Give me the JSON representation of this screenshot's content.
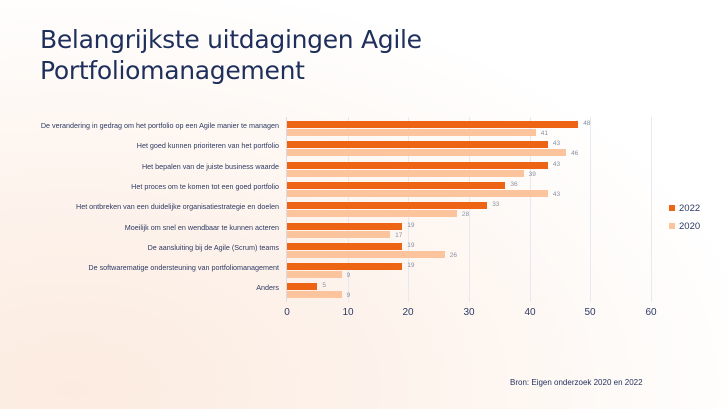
{
  "slide": {
    "title_line1": "Belangrijkste uitdagingen Agile",
    "title_line2": "Portfoliomanagement",
    "source": "Bron: Eigen onderzoek 2020 en 2022"
  },
  "colors": {
    "series_2022": "#ec6414",
    "series_2020": "#fbc49d",
    "title": "#1f2f5c"
  },
  "legend": {
    "items": [
      {
        "label": "2022",
        "color": "#ec6414"
      },
      {
        "label": "2020",
        "color": "#fbc49d"
      }
    ]
  },
  "axis": {
    "ticks": [
      "0",
      "10",
      "20",
      "30",
      "40",
      "50",
      "60"
    ]
  },
  "chart_data": {
    "type": "bar",
    "orientation": "horizontal",
    "title": "Belangrijkste uitdagingen Agile Portfoliomanagement",
    "xlabel": "",
    "ylabel": "",
    "xlim": [
      0,
      60
    ],
    "xticks": [
      0,
      10,
      20,
      30,
      40,
      50,
      60
    ],
    "grid": true,
    "legend_position": "right",
    "categories": [
      "De verandering in gedrag om het portfolio op een Agile manier te managen",
      "Het goed kunnen prioriteren van het portfolio",
      "Het bepalen van de juiste business waarde",
      "Het proces om te komen tot een goed portfolio",
      "Het ontbreken van een duidelijke organisatiestrategie en doelen",
      "Moeilijk om snel en wendbaar te kunnen acteren",
      "De aansluiting bij de Agile (Scrum) teams",
      "De softwarematige ondersteuning van portfoliomanagement",
      "Anders"
    ],
    "series": [
      {
        "name": "2022",
        "values": [
          48,
          43,
          43,
          36,
          33,
          19,
          19,
          19,
          5
        ]
      },
      {
        "name": "2020",
        "values": [
          41,
          46,
          39,
          43,
          28,
          17,
          26,
          9,
          9
        ]
      }
    ],
    "source": "Bron: Eigen onderzoek 2020 en 2022"
  }
}
